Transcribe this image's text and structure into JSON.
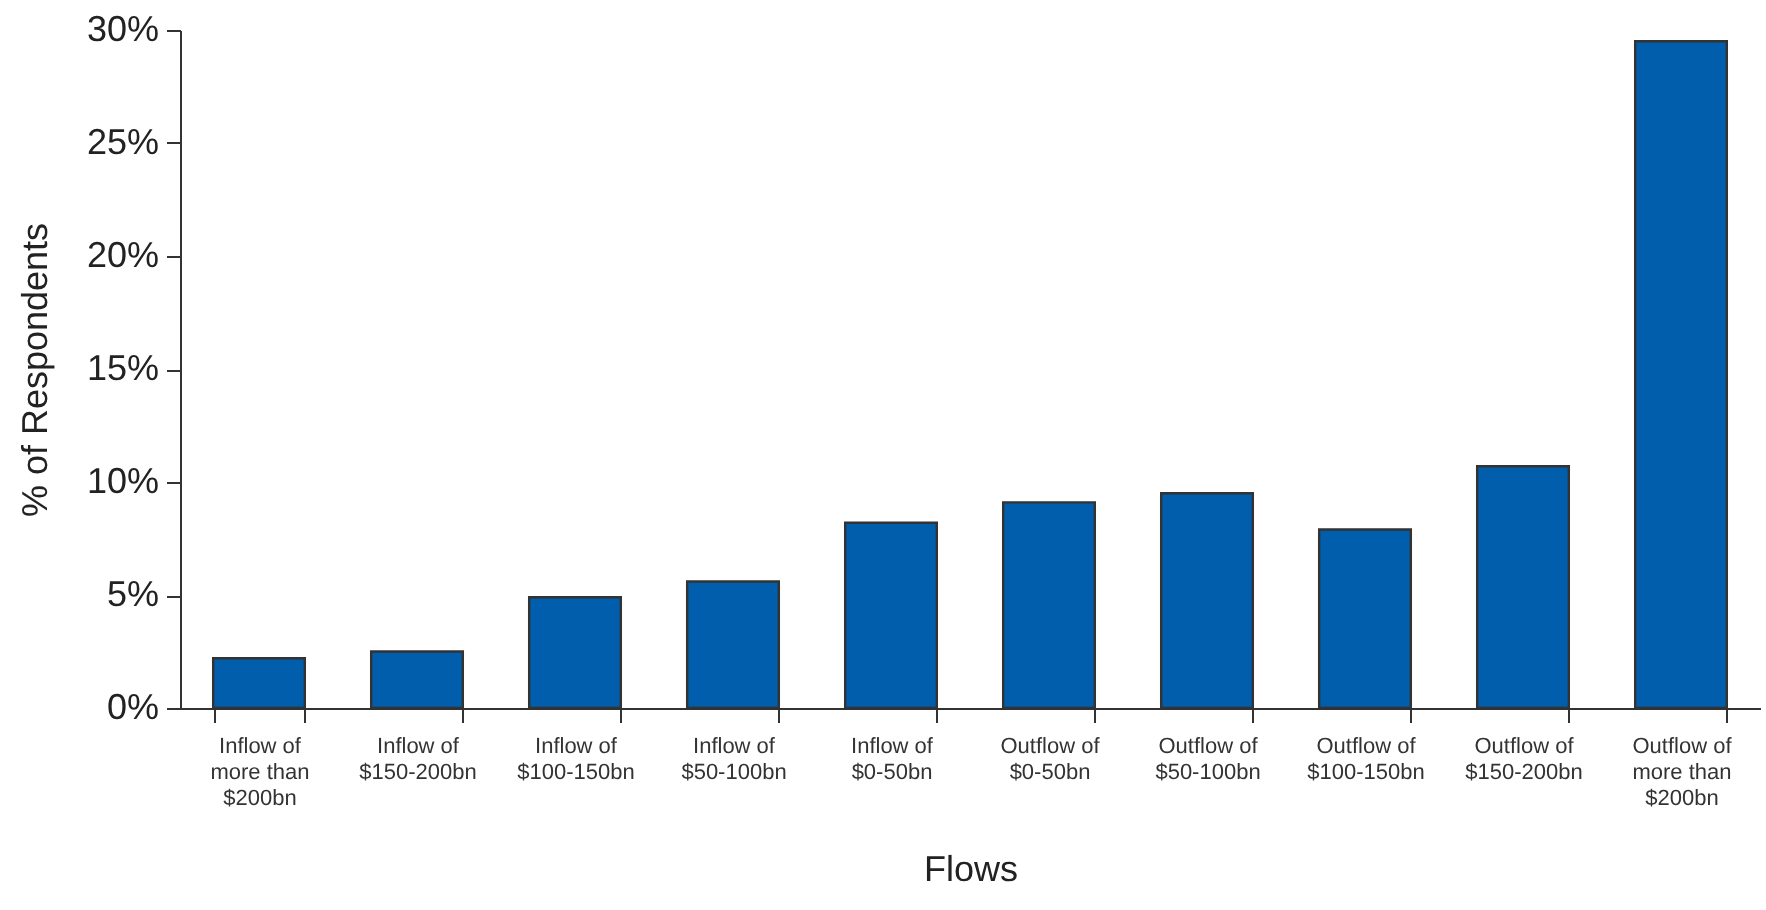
{
  "chart_data": {
    "type": "bar",
    "xlabel": "Flows",
    "ylabel": "% of Respondents",
    "categories": [
      "Inflow of more than $200bn",
      "Inflow of $150-200bn",
      "Inflow of $100-150bn",
      "Inflow of $50-100bn",
      "Inflow of $0-50bn",
      "Outflow of $0-50bn",
      "Outflow of $50-100bn",
      "Outflow of $100-150bn",
      "Outflow of $150-200bn",
      "Outflow of more than $200bn"
    ],
    "values": [
      2.2,
      2.5,
      4.9,
      5.6,
      8.2,
      9.1,
      9.5,
      7.9,
      10.7,
      29.5
    ],
    "color": "#005eac",
    "ylim": [
      0,
      30
    ],
    "yticks": [
      {
        "value": 0,
        "label": "0%"
      },
      {
        "value": 5,
        "label": "5%"
      },
      {
        "value": 10,
        "label": "10%"
      },
      {
        "value": 15,
        "label": "15%"
      },
      {
        "value": 20,
        "label": "20%"
      },
      {
        "value": 25,
        "label": "25%"
      },
      {
        "value": 30,
        "label": "30%"
      }
    ],
    "grid": false
  }
}
